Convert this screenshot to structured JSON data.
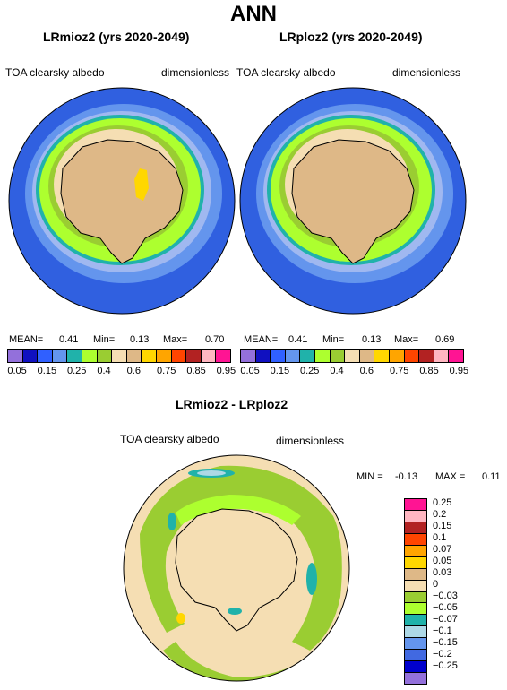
{
  "page": {
    "title": "ANN"
  },
  "panels": [
    {
      "subtitle": "LRmioz2 (yrs 2020-2049)",
      "left_label": "TOA clearsky albedo",
      "right_label": "dimensionless",
      "mean_label": "MEAN=",
      "mean_value": "0.41",
      "min_label": "Min=",
      "min_value": "0.13",
      "max_label": "Max=",
      "max_value": "0.70"
    },
    {
      "subtitle": "LRploz2 (yrs 2020-2049)",
      "left_label": "TOA clearsky albedo",
      "right_label": "dimensionless",
      "mean_label": "MEAN=",
      "mean_value": "0.41",
      "min_label": "Min=",
      "min_value": "0.13",
      "max_label": "Max=",
      "max_value": "0.69"
    }
  ],
  "colorbar_top": {
    "colors": [
      "#9370db",
      "#1010c0",
      "#3060ff",
      "#6495ed",
      "#20b2aa",
      "#adff2f",
      "#9acd32",
      "#f5deb3",
      "#deb887",
      "#ffd700",
      "#ffa500",
      "#ff4500",
      "#b22222",
      "#ffb6c1",
      "#ff1493"
    ],
    "tick_labels": [
      "0.05",
      "0.15",
      "0.25",
      "0.4",
      "0.6",
      "0.75",
      "0.85",
      "0.95"
    ]
  },
  "diff_panel": {
    "subtitle": "LRmioz2 - LRploz2",
    "left_label": "TOA clearsky albedo",
    "right_label": "dimensionless",
    "min_label": "MIN =",
    "min_value": "-0.13",
    "max_label": "MAX =",
    "max_value": "0.11"
  },
  "colorbar_diff": {
    "colors": [
      "#ff1493",
      "#ffb6c1",
      "#b22222",
      "#ff4500",
      "#ffa500",
      "#ffd700",
      "#deb887",
      "#f5deb3",
      "#9acd32",
      "#adff2f",
      "#20b2aa",
      "#add8e6",
      "#6495ed",
      "#4169e1",
      "#0000cd",
      "#9370db"
    ],
    "tick_labels": [
      "0.25",
      "0.2",
      "0.15",
      "0.1",
      "0.07",
      "0.05",
      "0.03",
      "0",
      "−0.03",
      "−0.05",
      "−0.07",
      "−0.1",
      "−0.15",
      "−0.2",
      "−0.25"
    ]
  },
  "map_colors": {
    "ocean_deep": "#3060e0",
    "ocean_mid": "#6495ed",
    "ice_edge": "#20b2aa",
    "green_light": "#adff2f",
    "green_dark": "#9acd32",
    "wheat": "#f5deb3",
    "land": "#deb887",
    "yellow": "#ffd700"
  }
}
